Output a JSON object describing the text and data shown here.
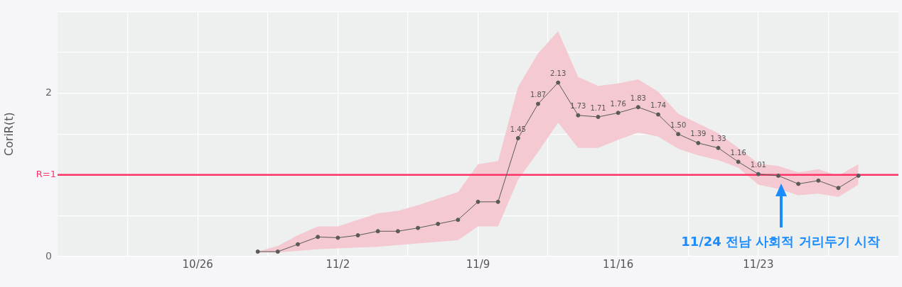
{
  "chart_data": {
    "type": "line",
    "ylabel": "CoriR(t)",
    "x": [
      "--10-29",
      "--10-30",
      "--10-31",
      "--11-01",
      "--11-02",
      "--11-03",
      "--11-04",
      "--11-05",
      "--11-06",
      "--11-07",
      "--11-08",
      "--11-09",
      "--11-10",
      "--11-11",
      "--11-12",
      "--11-13",
      "--11-14",
      "--11-15",
      "--11-16",
      "--11-17",
      "--11-18",
      "--11-19",
      "--11-20",
      "--11-21",
      "--11-22",
      "--11-23",
      "--11-24",
      "--11-25",
      "--11-26",
      "--11-27",
      "--11-28"
    ],
    "series": [
      {
        "color": "#5a5a5a",
        "values": [
          0.06,
          0.06,
          0.15,
          0.24,
          0.23,
          0.26,
          0.31,
          0.31,
          0.35,
          0.4,
          0.45,
          0.67,
          0.67,
          1.45,
          1.87,
          2.13,
          1.73,
          1.71,
          1.76,
          1.83,
          1.74,
          1.5,
          1.39,
          1.33,
          1.16,
          1.01,
          0.99,
          0.89,
          0.93,
          0.84,
          0.99
        ],
        "lower": [
          0.05,
          0.05,
          0.07,
          0.09,
          0.1,
          0.11,
          0.12,
          0.14,
          0.16,
          0.18,
          0.2,
          0.37,
          0.37,
          0.94,
          1.28,
          1.64,
          1.33,
          1.33,
          1.43,
          1.52,
          1.47,
          1.32,
          1.24,
          1.18,
          1.09,
          0.88,
          0.83,
          0.75,
          0.77,
          0.73,
          0.88
        ],
        "upper": [
          0.06,
          0.13,
          0.26,
          0.37,
          0.37,
          0.45,
          0.53,
          0.56,
          0.63,
          0.71,
          0.79,
          1.13,
          1.17,
          2.08,
          2.49,
          2.76,
          2.2,
          2.09,
          2.12,
          2.17,
          2.02,
          1.75,
          1.63,
          1.51,
          1.33,
          1.14,
          1.11,
          1.03,
          1.07,
          0.99,
          1.13
        ],
        "value_labels": [
          null,
          null,
          null,
          null,
          null,
          null,
          null,
          null,
          null,
          null,
          null,
          null,
          null,
          "1.45",
          "1.87",
          "2.13",
          "1.73",
          "1.71",
          "1.76",
          "1.83",
          "1.74",
          "1.50",
          "1.39",
          "1.33",
          "1.16",
          "1.01",
          null,
          null,
          null,
          null,
          null
        ]
      }
    ],
    "marker": "circle",
    "line_style": "solid",
    "grid": true,
    "legend": false,
    "xlim": [
      "--10-19",
      "--11-30"
    ],
    "xticks": [
      {
        "value": "--10-22T12:00",
        "label": null
      },
      {
        "value": "--10-26",
        "label": "10/26"
      },
      {
        "value": "--10-29T12:00",
        "label": null
      },
      {
        "value": "--11-02",
        "label": "11/2"
      },
      {
        "value": "--11-05T12:00",
        "label": null
      },
      {
        "value": "--11-09",
        "label": "11/9"
      },
      {
        "value": "--11-12T12:00",
        "label": null
      },
      {
        "value": "--11-16",
        "label": "11/16"
      },
      {
        "value": "--11-19T12:00",
        "label": null
      },
      {
        "value": "--11-23",
        "label": "11/23"
      },
      {
        "value": "--11-26T12:00",
        "label": null
      }
    ],
    "ylim": [
      0,
      3
    ],
    "yticks": [
      0,
      {
        "value": 0.5,
        "label": null
      },
      {
        "value": 1,
        "label": null
      },
      {
        "value": 1.5,
        "label": null
      },
      2,
      {
        "value": 2.5,
        "label": null
      },
      {
        "value": 3,
        "label": null
      }
    ],
    "ref_lines": [
      {
        "axis": "y",
        "value": 1,
        "label": "R=1",
        "color": "#ff3366"
      }
    ],
    "annotations": [
      "11/24 전남 사회적 거리두기 시작"
    ]
  }
}
